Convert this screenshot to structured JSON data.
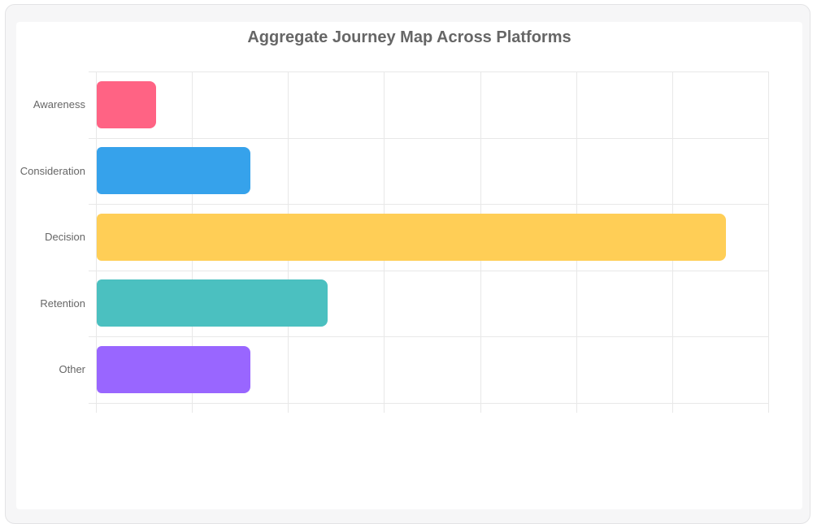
{
  "colors": {
    "page_bg": "#ffffff",
    "card_bg": "#f6f6f7",
    "card_border": "#e3e3e5",
    "panel_bg": "#ffffff",
    "title": "#666666",
    "labels": "#666666",
    "grid": "#e8e8e8"
  },
  "chart_data": {
    "type": "bar",
    "orientation": "horizontal",
    "title": "Aggregate Journey Map Across Platforms",
    "categories": [
      "Awareness",
      "Consideration",
      "Decision",
      "Retention",
      "Other"
    ],
    "values": [
      0.62,
      1.6,
      6.55,
      2.4,
      1.6
    ],
    "bar_colors": [
      "#ff6384",
      "#36a2eb",
      "#ffce56",
      "#4bc0c0",
      "#9966ff"
    ],
    "xlim": [
      0,
      7
    ],
    "grid_interval": 1,
    "x_tick_labels_visible": false,
    "grid": true,
    "legend": "none",
    "units": "unlabeled (values estimated in gridline units; x tick labels cropped out of view)"
  }
}
